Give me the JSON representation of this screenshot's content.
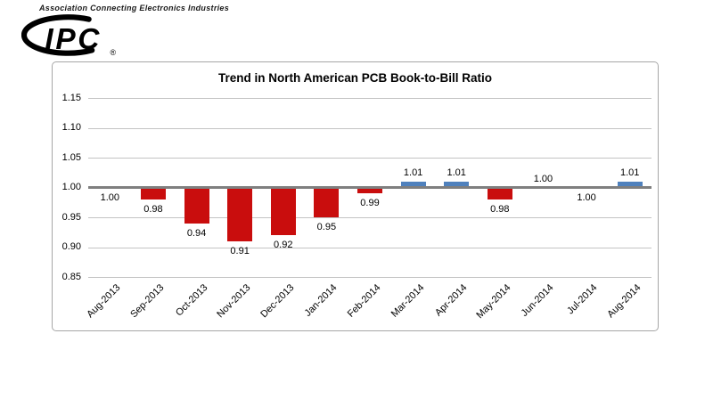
{
  "header": {
    "tagline": "Association Connecting Electronics Industries",
    "logo_text": "IPC",
    "registered_mark": "®"
  },
  "chart_data": {
    "type": "bar",
    "title": "Trend in North American PCB Book-to-Bill Ratio",
    "categories": [
      "Aug-2013",
      "Sep-2013",
      "Oct-2013",
      "Nov-2013",
      "Dec-2013",
      "Jan-2014",
      "Feb-2014",
      "Mar-2014",
      "Apr-2014",
      "May-2014",
      "Jun-2014",
      "Jul-2014",
      "Aug-2014"
    ],
    "values": [
      1.0,
      0.98,
      0.94,
      0.91,
      0.92,
      0.95,
      0.99,
      1.01,
      1.01,
      0.98,
      1.0,
      1.0,
      1.01
    ],
    "display_values": [
      "1.00",
      "0.98",
      "0.94",
      "0.91",
      "0.92",
      "0.95",
      "0.99",
      "1.01",
      "1.01",
      "0.98",
      "1.00",
      "1.00",
      "1.01"
    ],
    "label_side": [
      "below",
      "below",
      "below",
      "below",
      "below",
      "below",
      "below",
      "above",
      "above",
      "below",
      "above",
      "below",
      "above"
    ],
    "baseline": 1.0,
    "y_ticks": [
      "1.15",
      "1.10",
      "1.05",
      "1.00",
      "0.95",
      "0.90",
      "0.85"
    ],
    "ylim": [
      0.85,
      1.15
    ],
    "grid": true,
    "legend_position": "none",
    "colors": {
      "bar_above": "#4F81BD",
      "bar_below": "#C90D0D",
      "axis_line": "#7F7F7F",
      "gridline": "#C3C3C3",
      "chart_border": "#A6A6A6",
      "text": "#000000"
    }
  }
}
